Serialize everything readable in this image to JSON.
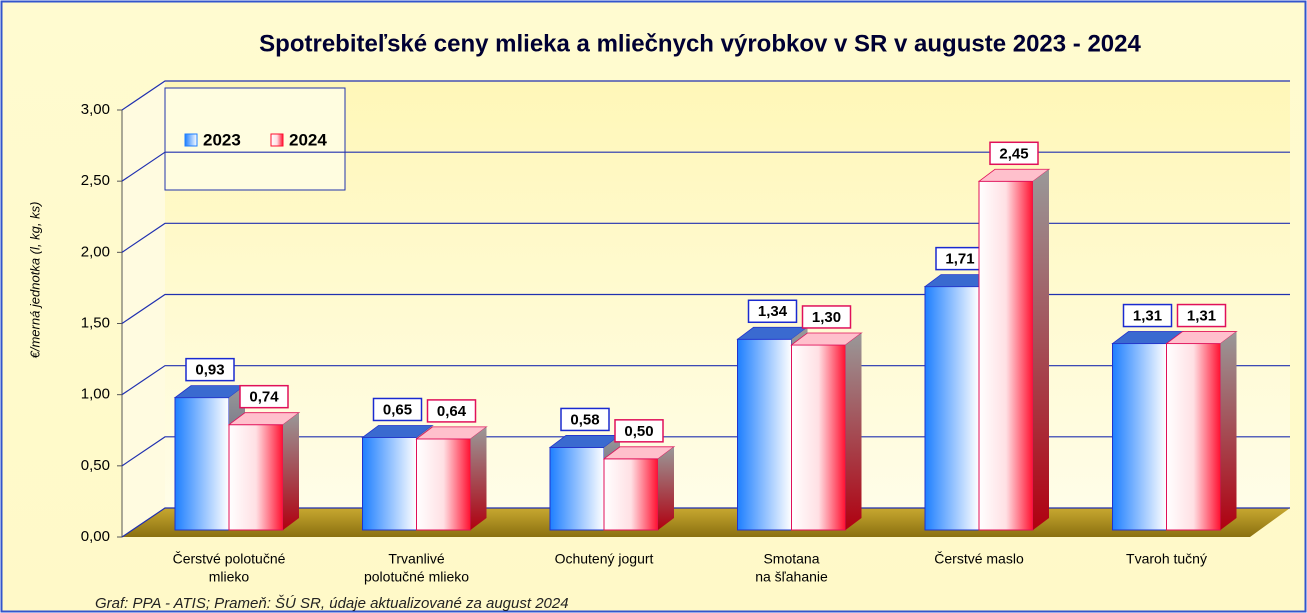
{
  "chart_data": {
    "type": "bar3d",
    "title": "Spotrebiteľské ceny mlieka a mliečnych výrobkov v SR v auguste 2023 - 2024",
    "y_label": "€/merná jednotka (l, kg, ks)",
    "footnote": "Graf: PPA - ATIS; Prameň: ŠÚ SR, údaje aktualizované za august 2024",
    "categories": [
      [
        "Čerstvé polotučné",
        "mlieko"
      ],
      [
        "Trvanlivé",
        "polotučné mlieko"
      ],
      [
        "Ochutený jogurt"
      ],
      [
        "Smotana",
        "na šľahanie"
      ],
      [
        "Čerstvé maslo"
      ],
      [
        "Tvaroh tučný"
      ]
    ],
    "series": [
      {
        "name": "2023",
        "color": "#1e7fff",
        "values": [
          0.93,
          0.65,
          0.58,
          1.34,
          1.71,
          1.31
        ],
        "value_labels": [
          "0,93",
          "0,65",
          "0,58",
          "1,34",
          "1,71",
          "1,31"
        ]
      },
      {
        "name": "2024",
        "color": "#ff1030",
        "values": [
          0.74,
          0.64,
          0.5,
          1.3,
          2.45,
          1.31
        ],
        "value_labels": [
          "0,74",
          "0,64",
          "0,50",
          "1,30",
          "2,45",
          "1,31"
        ]
      }
    ],
    "ylim": [
      0,
      3
    ],
    "yticks": [
      {
        "value": 0,
        "label": "0,00"
      },
      {
        "value": 0.5,
        "label": "0,50"
      },
      {
        "value": 1,
        "label": "1,00"
      },
      {
        "value": 1.5,
        "label": "1,50"
      },
      {
        "value": 2,
        "label": "2,00"
      },
      {
        "value": 2.5,
        "label": "2,50"
      },
      {
        "value": 3,
        "label": "3,00"
      }
    ],
    "grid": true,
    "legend": "top-left"
  }
}
